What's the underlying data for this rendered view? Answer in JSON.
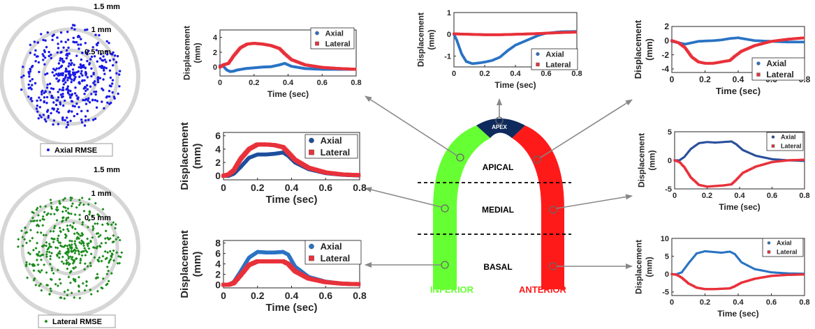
{
  "colors": {
    "axial": "#2a73c4",
    "lateral": "#e8313a",
    "axial_dots": "#1a1ae6",
    "lateral_dots": "#1a8a1a",
    "ring": "#d6d6d6",
    "inferior": "#66ff33",
    "anterior": "#ff1a1a",
    "apex": "#0f2a5c"
  },
  "scatter_plots": [
    {
      "name": "axial",
      "legend": "Axial RMSE",
      "ring_labels": [
        "1.5 mm",
        "1 mm",
        "0.5 mm"
      ]
    },
    {
      "name": "lateral",
      "legend": "Lateral RMSE",
      "ring_labels": [
        "1.5 mm",
        "1 mm",
        "0.5 mm"
      ]
    }
  ],
  "heart": {
    "apex_label": "APEX",
    "segments": [
      "APICAL",
      "MEDIAL",
      "BASAL"
    ],
    "inferior_label": "INFERIOR",
    "anterior_label": "ANTERIOR"
  },
  "chart_data": [
    {
      "type": "line",
      "name": "inferior-apical",
      "xlabel": "Time (sec)",
      "ylabel": [
        "Displacement",
        "(mm)"
      ],
      "xlim": [
        0,
        0.8
      ],
      "ylim": [
        -1.2,
        5
      ],
      "xticks": [
        0,
        0.2,
        0.4,
        0.6,
        0.8
      ],
      "xtick_labels": [
        "0",
        "0.2",
        "0.4",
        "0.6",
        "0.8"
      ],
      "yticks": [
        0,
        2,
        4
      ],
      "ytick_labels": [
        "0",
        "2",
        "4"
      ],
      "series": [
        {
          "name": "Axial",
          "color": "#2a73c4",
          "x": [
            0,
            0.02,
            0.04,
            0.06,
            0.08,
            0.1,
            0.15,
            0.2,
            0.25,
            0.3,
            0.35,
            0.38,
            0.42,
            0.5,
            0.6,
            0.7,
            0.8
          ],
          "y": [
            0.2,
            0.1,
            -0.4,
            -0.6,
            -0.55,
            -0.4,
            -0.2,
            -0.1,
            0.0,
            0.05,
            0.3,
            0.5,
            0.1,
            -0.2,
            -0.3,
            -0.3,
            -0.3
          ]
        },
        {
          "name": "Lateral",
          "color": "#e8313a",
          "x": [
            0,
            0.02,
            0.05,
            0.08,
            0.12,
            0.16,
            0.2,
            0.25,
            0.3,
            0.35,
            0.38,
            0.42,
            0.5,
            0.6,
            0.7,
            0.8
          ],
          "y": [
            0,
            0.3,
            0.5,
            1.5,
            2.6,
            3.1,
            3.2,
            3.1,
            2.9,
            2.5,
            1.8,
            1.0,
            0.3,
            -0.05,
            -0.2,
            -0.3
          ]
        }
      ],
      "legend": [
        "Axial",
        "Lateral"
      ]
    },
    {
      "type": "line",
      "name": "inferior-medial",
      "xlabel": "Time (sec)",
      "ylabel": [
        "Displacement",
        "(mm)"
      ],
      "xlim": [
        0,
        0.8
      ],
      "ylim": [
        -0.6,
        6.5
      ],
      "xticks": [
        0,
        0.2,
        0.4,
        0.6,
        0.8
      ],
      "xtick_labels": [
        "0",
        "0.2",
        "0.4",
        "0.6",
        "0.8"
      ],
      "yticks": [
        0,
        2,
        4,
        6
      ],
      "ytick_labels": [
        "0",
        "2",
        "4",
        "6"
      ],
      "series": [
        {
          "name": "Axial",
          "color": "#1e4f9c",
          "x": [
            0,
            0.03,
            0.06,
            0.1,
            0.15,
            0.2,
            0.25,
            0.3,
            0.35,
            0.38,
            0.42,
            0.5,
            0.6,
            0.7,
            0.8
          ],
          "y": [
            0,
            0,
            0.3,
            1.3,
            2.7,
            3.2,
            3.2,
            3.3,
            3.5,
            3.0,
            2.0,
            1.0,
            0.4,
            0.15,
            0.05
          ]
        },
        {
          "name": "Lateral",
          "color": "#e8313a",
          "x": [
            0,
            0.03,
            0.06,
            0.1,
            0.15,
            0.2,
            0.25,
            0.3,
            0.35,
            0.38,
            0.42,
            0.5,
            0.6,
            0.7,
            0.8
          ],
          "y": [
            0,
            0.2,
            0.8,
            2.5,
            4.0,
            4.7,
            4.7,
            4.6,
            4.3,
            3.5,
            2.4,
            1.2,
            0.5,
            0.2,
            0.1
          ]
        }
      ],
      "legend": [
        "Axial",
        "Lateral"
      ]
    },
    {
      "type": "line",
      "name": "inferior-basal",
      "xlabel": "Time (sec)",
      "ylabel": [
        "Displacement",
        "(mm)"
      ],
      "xlim": [
        0,
        0.8
      ],
      "ylim": [
        -0.6,
        8.5
      ],
      "xticks": [
        0,
        0.2,
        0.4,
        0.6,
        0.8
      ],
      "xtick_labels": [
        "0",
        "0.2",
        "0.4",
        "0.6",
        "0.8"
      ],
      "yticks": [
        0,
        2,
        4,
        6,
        8
      ],
      "ytick_labels": [
        "0",
        "2",
        "4",
        "6",
        "8"
      ],
      "series": [
        {
          "name": "Axial",
          "color": "#2a73c4",
          "x": [
            0,
            0.03,
            0.06,
            0.1,
            0.15,
            0.2,
            0.25,
            0.3,
            0.35,
            0.38,
            0.42,
            0.5,
            0.6,
            0.7,
            0.8
          ],
          "y": [
            0,
            0,
            0.5,
            2.5,
            5.2,
            6.3,
            6.2,
            6.2,
            6.3,
            5.8,
            3.5,
            1.5,
            0.6,
            0.2,
            0.1
          ]
        },
        {
          "name": "Lateral",
          "color": "#e8313a",
          "x": [
            0,
            0.03,
            0.06,
            0.1,
            0.15,
            0.2,
            0.25,
            0.3,
            0.35,
            0.38,
            0.42,
            0.5,
            0.6,
            0.7,
            0.8
          ],
          "y": [
            0,
            0,
            0.3,
            1.8,
            3.8,
            4.5,
            4.5,
            4.5,
            4.5,
            4.0,
            2.6,
            1.2,
            0.5,
            0.2,
            0.1
          ]
        }
      ],
      "legend": [
        "Axial",
        "Lateral"
      ]
    },
    {
      "type": "line",
      "name": "apex",
      "xlabel": "Time (sec)",
      "ylabel": [
        "Displacement",
        "(mm)"
      ],
      "xlim": [
        0,
        0.8
      ],
      "ylim": [
        -1.5,
        1
      ],
      "xticks": [
        0,
        0.2,
        0.4,
        0.6,
        0.8
      ],
      "xtick_labels": [
        "0",
        "0.2",
        "0.4",
        "0.6",
        "0.8"
      ],
      "yticks": [
        -1,
        0,
        1
      ],
      "ytick_labels": [
        "-1",
        "0",
        "1"
      ],
      "series": [
        {
          "name": "Axial",
          "color": "#2a73c4",
          "x": [
            0,
            0.02,
            0.05,
            0.08,
            0.12,
            0.16,
            0.2,
            0.25,
            0.3,
            0.35,
            0.4,
            0.45,
            0.5,
            0.55,
            0.6,
            0.7,
            0.8
          ],
          "y": [
            0,
            -0.3,
            -0.9,
            -1.25,
            -1.35,
            -1.32,
            -1.28,
            -1.2,
            -1.05,
            -0.75,
            -0.5,
            -0.35,
            -0.2,
            -0.05,
            0.05,
            0.12,
            0.13
          ]
        },
        {
          "name": "Lateral",
          "color": "#e8313a",
          "x": [
            0,
            0.1,
            0.2,
            0.3,
            0.4,
            0.5,
            0.6,
            0.7,
            0.8
          ],
          "y": [
            0.02,
            0,
            -0.02,
            -0.02,
            0,
            0.02,
            0.05,
            0.08,
            0.1
          ]
        }
      ],
      "legend": [
        "Axial",
        "Lateral"
      ]
    },
    {
      "type": "line",
      "name": "anterior-apical",
      "xlabel": "Time (sec)",
      "ylabel": [
        "Displacement",
        "(mm)"
      ],
      "xlim": [
        0,
        0.8
      ],
      "ylim": [
        -4.5,
        2
      ],
      "xticks": [
        0,
        0.2,
        0.4,
        0.6,
        0.8
      ],
      "xtick_labels": [
        "0",
        "0.2",
        "0.4",
        "0.6",
        "0.8"
      ],
      "yticks": [
        -4,
        -2,
        0,
        2
      ],
      "ytick_labels": [
        "-4",
        "-2",
        "0",
        "2"
      ],
      "series": [
        {
          "name": "Axial",
          "color": "#2a73c4",
          "x": [
            0,
            0.04,
            0.08,
            0.12,
            0.16,
            0.2,
            0.25,
            0.3,
            0.35,
            0.4,
            0.45,
            0.5,
            0.6,
            0.7,
            0.8
          ],
          "y": [
            -0.1,
            -0.3,
            -0.5,
            -0.3,
            -0.1,
            -0.05,
            0,
            0.1,
            0.3,
            0.4,
            0.2,
            0,
            -0.1,
            -0.2,
            -0.2
          ]
        },
        {
          "name": "Lateral",
          "color": "#e8313a",
          "x": [
            0,
            0.04,
            0.08,
            0.12,
            0.16,
            0.2,
            0.25,
            0.3,
            0.35,
            0.38,
            0.42,
            0.5,
            0.6,
            0.7,
            0.8
          ],
          "y": [
            0,
            -0.3,
            -1.0,
            -2.3,
            -3.0,
            -3.2,
            -3.2,
            -3.0,
            -2.8,
            -2.2,
            -1.5,
            -0.7,
            -0.1,
            0.2,
            0.4
          ]
        }
      ],
      "legend": [
        "Axial",
        "Lateral"
      ]
    },
    {
      "type": "line",
      "name": "anterior-medial",
      "xlabel": "Time (sec)",
      "ylabel": [
        "Displacement",
        "(mm)"
      ],
      "xlim": [
        0,
        0.8
      ],
      "ylim": [
        -5,
        5
      ],
      "xticks": [
        0,
        0.2,
        0.4,
        0.6,
        0.8
      ],
      "xtick_labels": [
        "0",
        "0.2",
        "0.4",
        "0.6",
        "0.8"
      ],
      "yticks": [
        -5,
        0,
        5
      ],
      "ytick_labels": [
        "-5",
        "0",
        "5"
      ],
      "series": [
        {
          "name": "Axial",
          "color": "#2a4f9c",
          "x": [
            0,
            0.03,
            0.06,
            0.1,
            0.15,
            0.2,
            0.25,
            0.3,
            0.35,
            0.38,
            0.42,
            0.5,
            0.6,
            0.7,
            0.8
          ],
          "y": [
            0,
            0,
            0.6,
            2.0,
            3.0,
            3.2,
            3.1,
            3.2,
            3.3,
            2.8,
            1.8,
            0.8,
            0.2,
            0,
            -0.1
          ]
        },
        {
          "name": "Lateral",
          "color": "#e8313a",
          "x": [
            0,
            0.03,
            0.06,
            0.1,
            0.15,
            0.2,
            0.25,
            0.3,
            0.35,
            0.38,
            0.42,
            0.5,
            0.6,
            0.7,
            0.8
          ],
          "y": [
            0,
            -0.3,
            -1.2,
            -3.0,
            -4.3,
            -4.6,
            -4.5,
            -4.4,
            -4.2,
            -3.4,
            -2.2,
            -1.1,
            -0.3,
            0,
            0.1
          ]
        }
      ],
      "legend": [
        "Axial",
        "Lateral"
      ]
    },
    {
      "type": "line",
      "name": "anterior-basal",
      "xlabel": "Time (sec)",
      "ylabel": [
        "Displacement",
        "(mm)"
      ],
      "xlim": [
        0,
        0.8
      ],
      "ylim": [
        -6,
        10
      ],
      "xticks": [
        0,
        0.2,
        0.4,
        0.6,
        0.8
      ],
      "xtick_labels": [
        "0",
        "0.2",
        "0.4",
        "0.6",
        "0.8"
      ],
      "yticks": [
        -5,
        0,
        5,
        10
      ],
      "ytick_labels": [
        "-5",
        "0",
        "5",
        "10"
      ],
      "series": [
        {
          "name": "Axial",
          "color": "#2a73c4",
          "x": [
            0,
            0.03,
            0.06,
            0.1,
            0.15,
            0.2,
            0.25,
            0.3,
            0.35,
            0.38,
            0.42,
            0.5,
            0.6,
            0.7,
            0.8
          ],
          "y": [
            0,
            0,
            0.5,
            3.0,
            5.8,
            6.4,
            6.2,
            6.0,
            6.3,
            5.6,
            3.3,
            1.4,
            0.5,
            0.2,
            0.1
          ]
        },
        {
          "name": "Lateral",
          "color": "#e8313a",
          "x": [
            0,
            0.03,
            0.06,
            0.1,
            0.15,
            0.2,
            0.25,
            0.3,
            0.35,
            0.38,
            0.42,
            0.5,
            0.6,
            0.7,
            0.8
          ],
          "y": [
            0,
            -0.2,
            -1.0,
            -2.6,
            -3.8,
            -4.2,
            -4.2,
            -4.1,
            -4.0,
            -3.4,
            -2.4,
            -1.3,
            -0.5,
            -0.2,
            -0.1
          ]
        }
      ],
      "legend": [
        "Axial",
        "Lateral"
      ]
    }
  ]
}
